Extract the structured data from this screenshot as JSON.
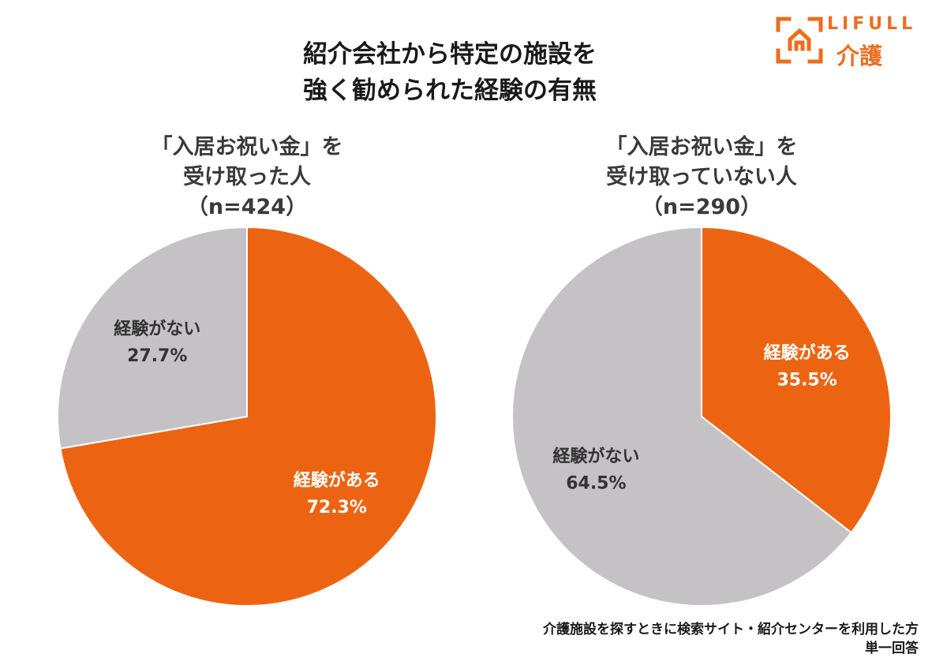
{
  "title": {
    "line1": "紹介会社から特定の施設を",
    "line2": "強く勧められた経験の有無"
  },
  "logo": {
    "brand": "LIFULL",
    "service": "介護",
    "icon": "house-bracket-icon"
  },
  "colors": {
    "accent": "#ec6411",
    "gray": "#c4c2c4",
    "brand": "#ed6d1f"
  },
  "chart_data": [
    {
      "type": "pie",
      "heading": [
        "「入居お祝い金」を",
        "受け取った人",
        "（n=424）"
      ],
      "slices": [
        {
          "label": "経験がある",
          "value": 72.3,
          "value_label": "72.3%",
          "color": "#ec6411",
          "label_color": "#ffffff"
        },
        {
          "label": "経験がない",
          "value": 27.7,
          "value_label": "27.7%",
          "color": "#c4c2c4",
          "label_color": "#333333"
        }
      ]
    },
    {
      "type": "pie",
      "heading": [
        "「入居お祝い金」を",
        "受け取っていない人",
        "（n=290）"
      ],
      "slices": [
        {
          "label": "経験がある",
          "value": 35.5,
          "value_label": "35.5%",
          "color": "#ec6411",
          "label_color": "#ffffff"
        },
        {
          "label": "経験がない",
          "value": 64.5,
          "value_label": "64.5%",
          "color": "#c4c2c4",
          "label_color": "#333333"
        }
      ]
    }
  ],
  "footnote": {
    "line1": "介護施設を探すときに検索サイト・紹介センターを利用した方",
    "line2": "単一回答"
  }
}
